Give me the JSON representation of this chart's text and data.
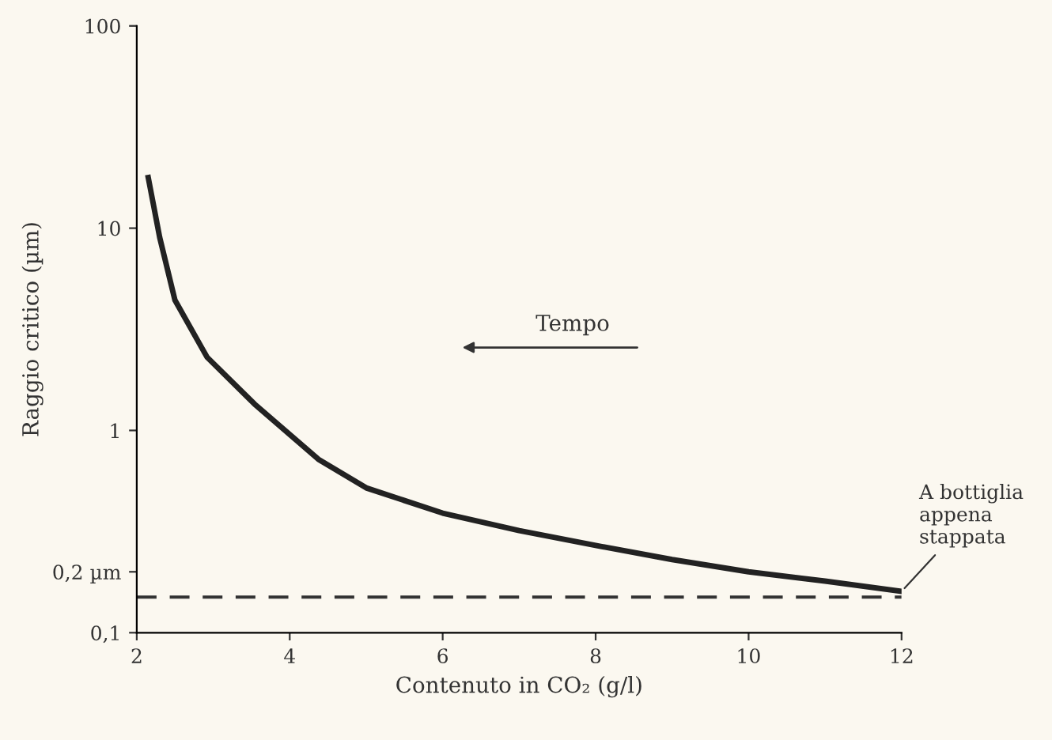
{
  "chart_data": {
    "type": "line",
    "xlabel": "Contenuto in CO₂ (g/l)",
    "ylabel": "Raggio critico (µm)",
    "x": [
      2.15,
      2.3,
      2.5,
      2.92,
      3.54,
      4.375,
      5,
      6,
      7,
      8,
      9,
      10,
      11,
      12
    ],
    "series": [
      {
        "color": "#222222",
        "values": [
          17.8,
          9,
          4.4,
          2.3,
          1.35,
          0.72,
          0.52,
          0.39,
          0.32,
          0.27,
          0.23,
          0.2,
          0.18,
          0.16
        ]
      }
    ],
    "log": "y",
    "xlim": [
      2,
      12
    ],
    "ylim": [
      0.1,
      100
    ],
    "xticks": [
      2,
      4,
      6,
      8,
      10,
      12
    ],
    "yticks": [
      {
        "value": 0.1,
        "label": "0,1"
      },
      {
        "value": 0.2,
        "label": "0,2 µm"
      },
      1,
      10,
      100
    ],
    "ref_lines": [
      {
        "axis": "y",
        "value": 0.15,
        "color": "#333333",
        "line_style": "dashed"
      }
    ],
    "annotations": [
      "Tempo",
      {
        "text": "A bottiglia\nappena\nstappata",
        "x": 12,
        "y": 0.16
      }
    ],
    "grid": false,
    "marker": "none",
    "line_style": "solid"
  }
}
